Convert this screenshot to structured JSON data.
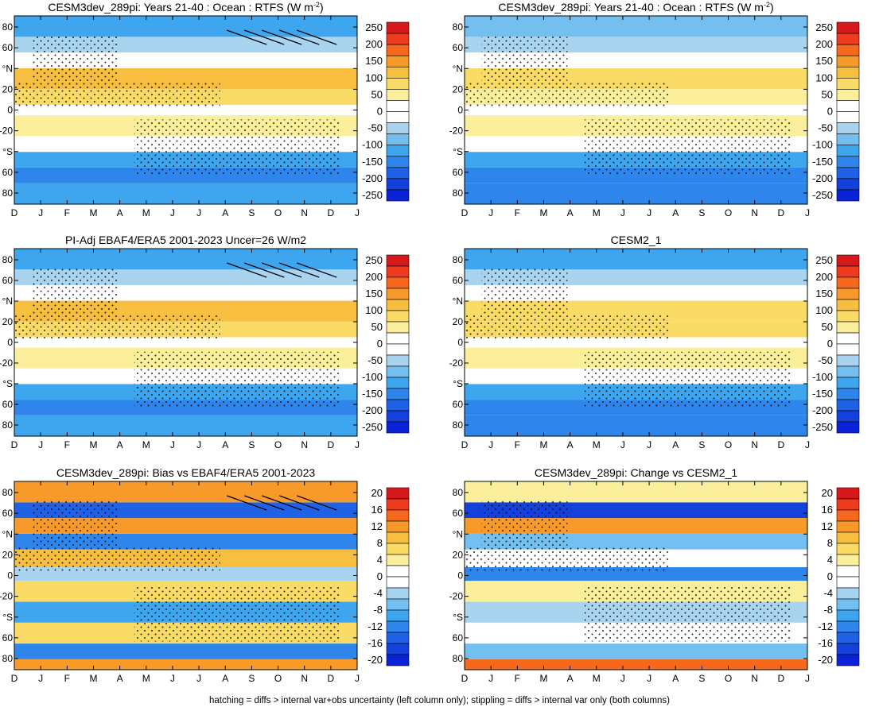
{
  "figure_caption": "hatching = diffs > internal var+obs uncertainty (left column only); stippling = diffs > internal var only (both columns)",
  "colorbars": {
    "main": {
      "labels": [
        "250",
        "200",
        "150",
        "100",
        "50",
        "0",
        "-50",
        "-100",
        "-150",
        "-200",
        "-250"
      ],
      "colors": [
        "#d7191c",
        "#ee3b1f",
        "#f5681e",
        "#f79a2a",
        "#f7be3f",
        "#f9db65",
        "#fbef9b",
        "#ffffff",
        "#ffffff",
        "#a9d4f0",
        "#72bff0",
        "#3ea6ef",
        "#2e86ec",
        "#2062e6",
        "#1440dc",
        "#0b22d6"
      ]
    },
    "bias": {
      "labels": [
        "20",
        "16",
        "12",
        "8",
        "4",
        "0",
        "-4",
        "-8",
        "-12",
        "-16",
        "-20"
      ],
      "colors": [
        "#d7191c",
        "#ee3b1f",
        "#f5681e",
        "#f79a2a",
        "#f7be3f",
        "#f9db65",
        "#fbef9b",
        "#ffffff",
        "#ffffff",
        "#a9d4f0",
        "#72bff0",
        "#3ea6ef",
        "#2e86ec",
        "#2062e6",
        "#1440dc",
        "#0b22d6"
      ]
    }
  },
  "chart_data": [
    {
      "type": "heatmap",
      "title": "CESM3dev_289pi: Years 21-40 : Ocean : RTFS (W m",
      "title_sup": "-2",
      "title_end": ")",
      "x_ticks": [
        "D",
        "J",
        "F",
        "M",
        "A",
        "M",
        "J",
        "J",
        "A",
        "S",
        "O",
        "N",
        "D",
        "J"
      ],
      "y_ticks": [
        "80",
        "60",
        "°N",
        "20",
        "0",
        "-20",
        "°S",
        "60",
        "80"
      ],
      "ylim": [
        -90,
        90
      ],
      "colorbar": "main",
      "zones": [
        [
          -90,
          -70,
          -140
        ],
        [
          -70,
          -55,
          -160
        ],
        [
          -55,
          -40,
          -120
        ],
        [
          -40,
          -25,
          -20
        ],
        [
          -25,
          -5,
          50
        ],
        [
          -5,
          5,
          20
        ],
        [
          5,
          20,
          80
        ],
        [
          20,
          40,
          110
        ],
        [
          40,
          55,
          20
        ],
        [
          55,
          70,
          -60
        ],
        [
          70,
          90,
          -110
        ]
      ],
      "stippled": true,
      "hatched": true
    },
    {
      "type": "heatmap",
      "title": "CESM3dev_289pi: Years 21-40 : Ocean : RTFS (W m",
      "title_sup": "-2",
      "title_end": ")",
      "x_ticks": [
        "D",
        "J",
        "F",
        "M",
        "A",
        "M",
        "J",
        "J",
        "A",
        "S",
        "O",
        "N",
        "D",
        "J"
      ],
      "y_ticks": [
        "80",
        "60",
        "°N",
        "20",
        "0",
        "-20",
        "°S",
        "60",
        "80"
      ],
      "ylim": [
        -90,
        90
      ],
      "colorbar": "main",
      "zones": [
        [
          -90,
          -70,
          -150
        ],
        [
          -70,
          -55,
          -170
        ],
        [
          -55,
          -40,
          -110
        ],
        [
          -40,
          -25,
          10
        ],
        [
          -25,
          -5,
          55
        ],
        [
          -5,
          5,
          25
        ],
        [
          5,
          20,
          70
        ],
        [
          20,
          40,
          90
        ],
        [
          40,
          55,
          10
        ],
        [
          55,
          70,
          -50
        ],
        [
          70,
          90,
          -100
        ]
      ],
      "stippled": true,
      "hatched": false
    },
    {
      "type": "heatmap",
      "title": "PI-Adj EBAF4/ERA5 2001-2023 Uncer=26 W/m2",
      "x_ticks": [
        "D",
        "J",
        "F",
        "M",
        "A",
        "M",
        "J",
        "J",
        "A",
        "S",
        "O",
        "N",
        "D",
        "J"
      ],
      "y_ticks": [
        "80",
        "60",
        "°N",
        "20",
        "0",
        "-20",
        "°S",
        "60",
        "80"
      ],
      "ylim": [
        -90,
        90
      ],
      "colorbar": "main",
      "zones": [
        [
          -90,
          -70,
          -140
        ],
        [
          -70,
          -55,
          -150
        ],
        [
          -55,
          -40,
          -110
        ],
        [
          -40,
          -25,
          -10
        ],
        [
          -25,
          -5,
          55
        ],
        [
          -5,
          5,
          15
        ],
        [
          5,
          20,
          85
        ],
        [
          20,
          40,
          110
        ],
        [
          40,
          55,
          15
        ],
        [
          55,
          70,
          -70
        ],
        [
          70,
          90,
          -120
        ]
      ],
      "stippled": true,
      "hatched": true
    },
    {
      "type": "heatmap",
      "title": "CESM2_1",
      "x_ticks": [
        "D",
        "J",
        "F",
        "M",
        "A",
        "M",
        "J",
        "J",
        "A",
        "S",
        "O",
        "N",
        "D",
        "J"
      ],
      "y_ticks": [
        "80",
        "60",
        "°N",
        "20",
        "0",
        "-20",
        "°S",
        "60",
        "80"
      ],
      "ylim": [
        -90,
        90
      ],
      "colorbar": "main",
      "zones": [
        [
          -90,
          -70,
          -150
        ],
        [
          -70,
          -55,
          -170
        ],
        [
          -55,
          -40,
          -120
        ],
        [
          -40,
          -25,
          0
        ],
        [
          -25,
          -5,
          60
        ],
        [
          -5,
          5,
          20
        ],
        [
          5,
          20,
          80
        ],
        [
          20,
          40,
          100
        ],
        [
          40,
          55,
          10
        ],
        [
          55,
          70,
          -60
        ],
        [
          70,
          90,
          -110
        ]
      ],
      "stippled": true,
      "hatched": false
    },
    {
      "type": "heatmap",
      "title": "CESM3dev_289pi: Bias vs EBAF4/ERA5 2001-2023",
      "x_ticks": [
        "D",
        "J",
        "F",
        "M",
        "A",
        "M",
        "J",
        "J",
        "A",
        "S",
        "O",
        "N",
        "D",
        "J"
      ],
      "y_ticks": [
        "80",
        "60",
        "°N",
        "20",
        "0",
        "-20",
        "°S",
        "60",
        "80"
      ],
      "ylim": [
        -90,
        90
      ],
      "colorbar": "bias",
      "zones": [
        [
          -90,
          -80,
          14
        ],
        [
          -80,
          -65,
          -14
        ],
        [
          -65,
          -45,
          6
        ],
        [
          -45,
          -25,
          -10
        ],
        [
          -25,
          -5,
          6
        ],
        [
          -5,
          8,
          -4
        ],
        [
          8,
          25,
          10
        ],
        [
          25,
          40,
          -12
        ],
        [
          40,
          55,
          14
        ],
        [
          55,
          70,
          -16
        ],
        [
          70,
          90,
          12
        ]
      ],
      "stippled": true,
      "hatched": true
    },
    {
      "type": "heatmap",
      "title": "CESM3dev_289pi: Change vs CESM2_1",
      "x_ticks": [
        "D",
        "J",
        "F",
        "M",
        "A",
        "M",
        "J",
        "J",
        "A",
        "S",
        "O",
        "N",
        "D",
        "J"
      ],
      "y_ticks": [
        "80",
        "60",
        "°N",
        "20",
        "0",
        "-20",
        "°S",
        "60",
        "80"
      ],
      "ylim": [
        -90,
        90
      ],
      "colorbar": "bias",
      "zones": [
        [
          -90,
          -80,
          16
        ],
        [
          -80,
          -65,
          -8
        ],
        [
          -65,
          -45,
          2
        ],
        [
          -45,
          -25,
          -4
        ],
        [
          -25,
          -5,
          4
        ],
        [
          -5,
          8,
          -14
        ],
        [
          8,
          25,
          2
        ],
        [
          25,
          40,
          -6
        ],
        [
          40,
          55,
          12
        ],
        [
          55,
          70,
          -18
        ],
        [
          70,
          90,
          4
        ]
      ],
      "stippled": true,
      "hatched": false
    }
  ]
}
